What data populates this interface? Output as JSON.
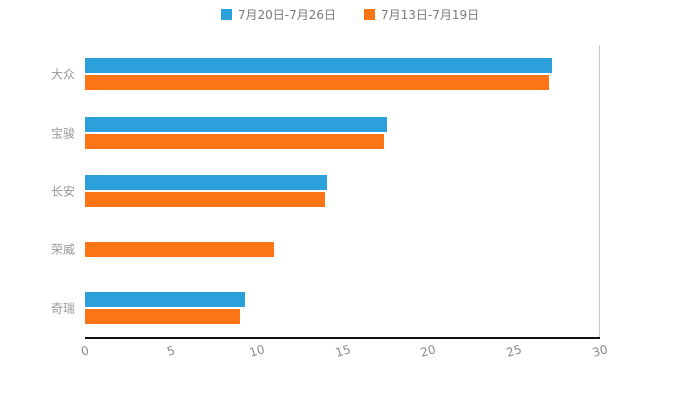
{
  "legend": {
    "items": [
      {
        "label": "7月20日-7月26日",
        "color": "#2CA0DB"
      },
      {
        "label": "7月13日-7月19日",
        "color": "#FB7415"
      }
    ]
  },
  "chart_data": {
    "type": "bar",
    "orientation": "horizontal",
    "title": "",
    "xlabel": "",
    "ylabel": "",
    "categories": [
      "大众",
      "宝骏",
      "长安",
      "荣威",
      "奇瑞"
    ],
    "series": [
      {
        "name": "7月20日-7月26日",
        "color": "#2CA0DB",
        "values": [
          27.2,
          17.6,
          14.1,
          null,
          9.3
        ]
      },
      {
        "name": "7月13日-7月19日",
        "color": "#FB7415",
        "values": [
          27.0,
          17.4,
          14.0,
          11.0,
          9.0
        ]
      }
    ],
    "xlim": [
      0,
      30
    ],
    "xticks": [
      0,
      5,
      10,
      15,
      20,
      25,
      30
    ],
    "grid": "single vertical gridline at x=30 (right edge)",
    "legend_position": "top-center",
    "background": "#ffffff"
  }
}
